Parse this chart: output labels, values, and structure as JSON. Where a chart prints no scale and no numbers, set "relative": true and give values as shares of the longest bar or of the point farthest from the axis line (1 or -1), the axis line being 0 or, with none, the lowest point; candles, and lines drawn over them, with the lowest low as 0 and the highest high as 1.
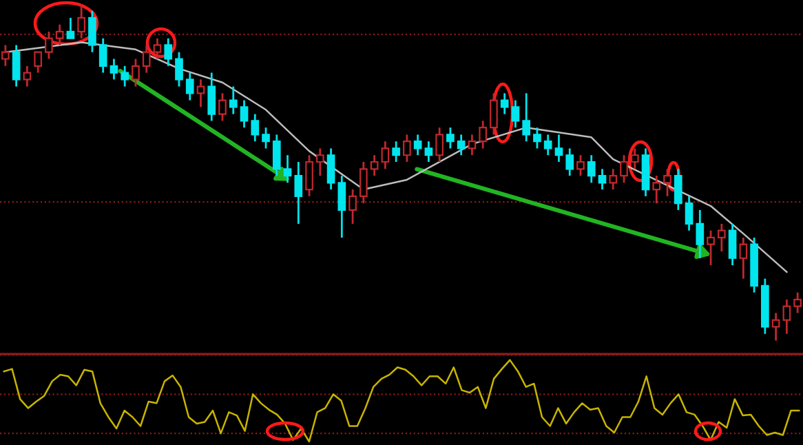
{
  "chart_data": [
    {
      "type": "candlestick",
      "relative": true,
      "categories": [
        null,
        null,
        null,
        null,
        null,
        null,
        null,
        null,
        null,
        null,
        null,
        null,
        null,
        null,
        null,
        null,
        null,
        null,
        null,
        null,
        null,
        null,
        null,
        null,
        null,
        null,
        null,
        null,
        null,
        null,
        null,
        null,
        null,
        null,
        null,
        null,
        null,
        null,
        null,
        null,
        null,
        null,
        null,
        null,
        null,
        null,
        null,
        null,
        null,
        null,
        null,
        null,
        null,
        null,
        null,
        null,
        null,
        null,
        null,
        null,
        null,
        null,
        null,
        null,
        null,
        null,
        null,
        null,
        null,
        null,
        null,
        null,
        null,
        null
      ],
      "series": [
        {
          "type": "candlestick",
          "ohlc": [
            [
              0.837,
              0.878,
              0.816,
              0.857
            ],
            [
              0.857,
              0.878,
              0.755,
              0.776
            ],
            [
              0.776,
              0.816,
              0.755,
              0.796
            ],
            [
              0.816,
              0.857,
              0.796,
              0.857
            ],
            [
              0.857,
              0.918,
              0.837,
              0.898
            ],
            [
              0.898,
              0.939,
              0.878,
              0.918
            ],
            [
              0.918,
              0.959,
              0.898,
              0.898
            ],
            [
              0.918,
              1,
              0.898,
              0.959
            ],
            [
              0.959,
              0.98,
              0.857,
              0.878
            ],
            [
              0.878,
              0.898,
              0.796,
              0.816
            ],
            [
              0.816,
              0.837,
              0.776,
              0.796
            ],
            [
              0.796,
              0.816,
              0.755,
              0.776
            ],
            [
              0.776,
              0.837,
              0.755,
              0.816
            ],
            [
              0.816,
              0.878,
              0.796,
              0.857
            ],
            [
              0.857,
              0.898,
              0.837,
              0.878
            ],
            [
              0.878,
              0.898,
              0.816,
              0.837
            ],
            [
              0.837,
              0.857,
              0.755,
              0.776
            ],
            [
              0.776,
              0.796,
              0.714,
              0.735
            ],
            [
              0.735,
              0.776,
              0.694,
              0.755
            ],
            [
              0.755,
              0.796,
              0.653,
              0.673
            ],
            [
              0.673,
              0.735,
              0.653,
              0.714
            ],
            [
              0.714,
              0.755,
              0.673,
              0.694
            ],
            [
              0.694,
              0.714,
              0.633,
              0.653
            ],
            [
              0.653,
              0.673,
              0.592,
              0.612
            ],
            [
              0.612,
              0.633,
              0.571,
              0.592
            ],
            [
              0.592,
              0.612,
              0.49,
              0.51
            ],
            [
              0.51,
              0.551,
              0.469,
              0.49
            ],
            [
              0.49,
              0.531,
              0.347,
              0.429
            ],
            [
              0.449,
              0.551,
              0.429,
              0.531
            ],
            [
              0.531,
              0.571,
              0.49,
              0.551
            ],
            [
              0.551,
              0.571,
              0.449,
              0.469
            ],
            [
              0.469,
              0.49,
              0.306,
              0.388
            ],
            [
              0.388,
              0.449,
              0.347,
              0.429
            ],
            [
              0.429,
              0.531,
              0.408,
              0.51
            ],
            [
              0.51,
              0.551,
              0.49,
              0.531
            ],
            [
              0.531,
              0.592,
              0.51,
              0.571
            ],
            [
              0.571,
              0.592,
              0.531,
              0.551
            ],
            [
              0.551,
              0.612,
              0.531,
              0.592
            ],
            [
              0.592,
              0.612,
              0.551,
              0.571
            ],
            [
              0.571,
              0.592,
              0.531,
              0.551
            ],
            [
              0.551,
              0.633,
              0.531,
              0.612
            ],
            [
              0.612,
              0.633,
              0.571,
              0.592
            ],
            [
              0.592,
              0.612,
              0.551,
              0.571
            ],
            [
              0.571,
              0.612,
              0.551,
              0.592
            ],
            [
              0.592,
              0.653,
              0.571,
              0.633
            ],
            [
              0.633,
              0.735,
              0.612,
              0.714
            ],
            [
              0.714,
              0.735,
              0.673,
              0.694
            ],
            [
              0.694,
              0.714,
              0.633,
              0.653
            ],
            [
              0.653,
              0.735,
              0.592,
              0.612
            ],
            [
              0.612,
              0.633,
              0.571,
              0.592
            ],
            [
              0.592,
              0.612,
              0.551,
              0.571
            ],
            [
              0.571,
              0.612,
              0.531,
              0.551
            ],
            [
              0.551,
              0.571,
              0.49,
              0.51
            ],
            [
              0.51,
              0.551,
              0.49,
              0.531
            ],
            [
              0.531,
              0.551,
              0.469,
              0.49
            ],
            [
              0.49,
              0.51,
              0.449,
              0.469
            ],
            [
              0.469,
              0.51,
              0.449,
              0.49
            ],
            [
              0.49,
              0.551,
              0.469,
              0.531
            ],
            [
              0.531,
              0.571,
              0.51,
              0.551
            ],
            [
              0.551,
              0.571,
              0.429,
              0.449
            ],
            [
              0.449,
              0.49,
              0.408,
              0.469
            ],
            [
              0.469,
              0.51,
              0.429,
              0.49
            ],
            [
              0.49,
              0.51,
              0.388,
              0.408
            ],
            [
              0.408,
              0.429,
              0.327,
              0.347
            ],
            [
              0.347,
              0.388,
              0.245,
              0.286
            ],
            [
              0.286,
              0.327,
              0.224,
              0.306
            ],
            [
              0.306,
              0.347,
              0.265,
              0.327
            ],
            [
              0.327,
              0.347,
              0.224,
              0.245
            ],
            [
              0.245,
              0.306,
              0.184,
              0.286
            ],
            [
              0.286,
              0.306,
              0.143,
              0.163
            ],
            [
              0.163,
              0.184,
              0.02,
              0.041
            ],
            [
              0.041,
              0.082,
              0,
              0.061
            ],
            [
              0.061,
              0.122,
              0.02,
              0.102
            ],
            [
              0.102,
              0.143,
              0.082,
              0.122
            ]
          ],
          "colors": [
            "#c0282d",
            "#00e5ee",
            "#c0282d",
            "#c0282d",
            "#c0282d",
            "#c0282d",
            "#00e5ee",
            "#c0282d",
            "#00e5ee",
            "#00e5ee",
            "#00e5ee",
            "#00e5ee",
            "#c0282d",
            "#c0282d",
            "#c0282d",
            "#00e5ee",
            "#00e5ee",
            "#00e5ee",
            "#c0282d",
            "#00e5ee",
            "#c0282d",
            "#00e5ee",
            "#00e5ee",
            "#00e5ee",
            "#00e5ee",
            "#00e5ee",
            "#00e5ee",
            "#00e5ee",
            "#c0282d",
            "#c0282d",
            "#00e5ee",
            "#00e5ee",
            "#c0282d",
            "#c0282d",
            "#c0282d",
            "#c0282d",
            "#00e5ee",
            "#c0282d",
            "#00e5ee",
            "#00e5ee",
            "#c0282d",
            "#00e5ee",
            "#00e5ee",
            "#c0282d",
            "#c0282d",
            "#c0282d",
            "#00e5ee",
            "#00e5ee",
            "#00e5ee",
            "#00e5ee",
            "#00e5ee",
            "#00e5ee",
            "#00e5ee",
            "#c0282d",
            "#00e5ee",
            "#00e5ee",
            "#c0282d",
            "#c0282d",
            "#c0282d",
            "#00e5ee",
            "#c0282d",
            "#c0282d",
            "#00e5ee",
            "#00e5ee",
            "#00e5ee",
            "#c0282d",
            "#c0282d",
            "#00e5ee",
            "#c0282d",
            "#00e5ee",
            "#00e5ee",
            "#c0282d",
            "#c0282d",
            "#c0282d"
          ]
        },
        {
          "type": "line",
          "color": "#bdbdbd",
          "values": [
            0.857,
            null,
            null,
            null,
            null,
            null,
            null,
            0.886,
            null,
            null,
            null,
            null,
            0.865,
            null,
            null,
            null,
            0.808,
            null,
            null,
            null,
            0.767,
            null,
            null,
            null,
            0.686,
            null,
            null,
            null,
            0.563,
            null,
            null,
            null,
            null,
            0.449,
            null,
            null,
            null,
            0.478,
            null,
            null,
            null,
            null,
            null,
            0.584,
            null,
            null,
            null,
            null,
            0.633,
            null,
            null,
            null,
            null,
            null,
            0.604,
            null,
            0.539,
            null,
            null,
            null,
            null,
            0.461,
            null,
            null,
            null,
            0.4,
            null,
            null,
            0.318,
            null,
            null,
            null,
            0.204,
            null
          ]
        }
      ],
      "ref_lines": [
        {
          "axis": "y",
          "value": 0.91,
          "color": "#8b1a1a",
          "line_style": "dotted"
        },
        {
          "axis": "y",
          "value": 0.412,
          "color": "#8b1a1a",
          "line_style": "dotted"
        }
      ]
    },
    {
      "type": "line",
      "relative": true,
      "categories": [
        null,
        null,
        null,
        null,
        null,
        null,
        null,
        null,
        null,
        null,
        null,
        null,
        null,
        null,
        null,
        null,
        null,
        null,
        null,
        null,
        null,
        null,
        null,
        null,
        null,
        null,
        null,
        null,
        null,
        null,
        null,
        null,
        null,
        null,
        null,
        null,
        null,
        null,
        null,
        null,
        null,
        null,
        null,
        null,
        null,
        null,
        null,
        null,
        null,
        null,
        null,
        null,
        null,
        null,
        null,
        null,
        null,
        null,
        null,
        null,
        null,
        null,
        null,
        null,
        null,
        null,
        null,
        null,
        null,
        null,
        null,
        null,
        null,
        null,
        null,
        null,
        null,
        null,
        null,
        null,
        null,
        null,
        null,
        null,
        null,
        null,
        null,
        null,
        null,
        null,
        null,
        null,
        null,
        null,
        null,
        null,
        null,
        null,
        null,
        null
      ],
      "series": [
        {
          "color": "#c8b400",
          "values": [
            0.86,
            0.89,
            0.52,
            0.41,
            0.49,
            0.56,
            0.74,
            0.82,
            0.8,
            0.69,
            0.88,
            0.86,
            0.47,
            0.3,
            0.16,
            0.38,
            0.3,
            0.19,
            0.49,
            0.47,
            0.74,
            0.81,
            0.67,
            0.3,
            0.22,
            0.24,
            0.38,
            0.1,
            0.36,
            0.32,
            0.13,
            0.58,
            0.47,
            0.39,
            0.33,
            0.22,
            0.02,
            0.16,
            0,
            0.36,
            0.41,
            0.58,
            0.5,
            0.19,
            0.19,
            0.41,
            0.67,
            0.77,
            0.82,
            0.91,
            0.88,
            0.8,
            0.69,
            0.8,
            0.8,
            0.71,
            0.91,
            0.63,
            0.6,
            0.67,
            0.41,
            0.77,
            0.89,
            1,
            0.86,
            0.67,
            0.71,
            0.3,
            0.19,
            0.41,
            0.22,
            0.36,
            0.47,
            0.39,
            0.41,
            0.19,
            0.11,
            0.3,
            0.3,
            0.49,
            0.8,
            0.41,
            0.33,
            0.47,
            0.58,
            0.36,
            0.33,
            0.19,
            0.02,
            0.24,
            0.17,
            0.52,
            0.32,
            0.33,
            0.19,
            0.08,
            0.11,
            0.08,
            0.38,
            0.38
          ]
        }
      ],
      "ref_lines": [
        {
          "axis": "y",
          "value": 1.06,
          "color": "#8b1a1a",
          "line_style": "dotted"
        },
        {
          "axis": "y",
          "value": 0.58,
          "color": "#8b1a1a",
          "line_style": "dotted"
        },
        {
          "axis": "y",
          "value": 0.1,
          "color": "#8b1a1a",
          "line_style": "dotted"
        }
      ]
    }
  ]
}
